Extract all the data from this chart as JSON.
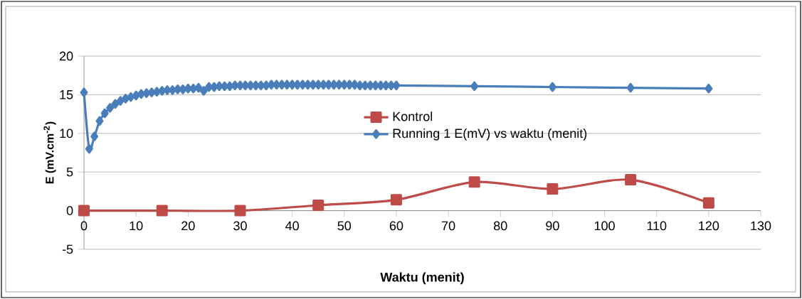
{
  "chart_data": {
    "type": "line",
    "xlabel": "Waktu (menit)",
    "ylabel": "E (mV.cm$^{-2}$)",
    "xlim": [
      0,
      130
    ],
    "ylim": [
      -5,
      20
    ],
    "xticks": [
      0,
      10,
      20,
      30,
      40,
      50,
      60,
      70,
      80,
      90,
      100,
      110,
      120,
      130
    ],
    "yticks": [
      -5,
      0,
      5,
      10,
      15,
      20
    ],
    "grid": "y",
    "legend": "center",
    "series": [
      {
        "name": "Kontrol",
        "color": "#be4b48",
        "marker": "square",
        "x": [
          0,
          15,
          30,
          45,
          60,
          75,
          90,
          105,
          120
        ],
        "values": [
          0,
          0,
          0,
          0.7,
          1.4,
          3.7,
          2.8,
          4.0,
          1.0
        ]
      },
      {
        "name": "Running 1 E(mV) vs waktu (menit)",
        "color": "#4a7ebb",
        "marker": "diamond",
        "x": [
          0,
          1,
          2,
          3,
          4,
          5,
          6,
          7,
          8,
          9,
          10,
          11,
          12,
          13,
          14,
          15,
          16,
          17,
          18,
          19,
          20,
          21,
          22,
          23,
          24,
          25,
          26,
          27,
          28,
          29,
          30,
          31,
          32,
          33,
          34,
          35,
          36,
          37,
          38,
          39,
          40,
          41,
          42,
          43,
          44,
          45,
          46,
          47,
          48,
          49,
          50,
          51,
          52,
          53,
          54,
          55,
          56,
          57,
          58,
          59,
          60,
          75,
          90,
          105,
          120
        ],
        "values": [
          15.3,
          8.0,
          9.6,
          11.6,
          12.6,
          13.3,
          13.8,
          14.2,
          14.5,
          14.7,
          14.9,
          15.1,
          15.2,
          15.3,
          15.4,
          15.5,
          15.6,
          15.6,
          15.7,
          15.7,
          15.8,
          15.8,
          15.9,
          15.5,
          16.0,
          16.0,
          16.1,
          16.1,
          16.1,
          16.2,
          16.2,
          16.2,
          16.2,
          16.2,
          16.2,
          16.2,
          16.3,
          16.3,
          16.3,
          16.3,
          16.3,
          16.3,
          16.3,
          16.3,
          16.3,
          16.3,
          16.3,
          16.3,
          16.3,
          16.3,
          16.3,
          16.3,
          16.3,
          16.2,
          16.2,
          16.2,
          16.2,
          16.2,
          16.2,
          16.2,
          16.2,
          16.1,
          16.0,
          15.9,
          15.8
        ]
      }
    ]
  }
}
